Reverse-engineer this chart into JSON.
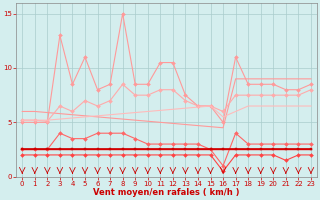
{
  "x": [
    0,
    1,
    2,
    3,
    4,
    5,
    6,
    7,
    8,
    9,
    10,
    11,
    12,
    13,
    14,
    15,
    16,
    17,
    18,
    19,
    20,
    21,
    22,
    23
  ],
  "series": [
    {
      "name": "rafales_jagged",
      "y": [
        5.0,
        5.0,
        5.0,
        13.0,
        8.5,
        11.0,
        8.0,
        8.5,
        15.0,
        8.5,
        8.5,
        10.5,
        10.5,
        7.5,
        6.5,
        6.5,
        5.0,
        11.0,
        8.5,
        8.5,
        8.5,
        8.0,
        8.0,
        8.5
      ],
      "color": "#ff9999",
      "lw": 0.8,
      "marker": "D",
      "ms": 2.0,
      "zorder": 2
    },
    {
      "name": "rafales_trend_upper",
      "y": [
        6.0,
        6.0,
        5.9,
        5.8,
        5.7,
        5.6,
        5.5,
        5.4,
        5.3,
        5.2,
        5.1,
        5.0,
        4.9,
        4.8,
        4.7,
        4.6,
        4.5,
        9.0,
        9.0,
        9.0,
        9.0,
        9.0,
        9.0,
        9.0
      ],
      "color": "#ff9999",
      "lw": 0.8,
      "marker": null,
      "ms": 0,
      "zorder": 2
    },
    {
      "name": "rafales_smooth",
      "y": [
        5.2,
        5.2,
        5.1,
        6.5,
        6.0,
        7.0,
        6.5,
        7.0,
        8.5,
        7.5,
        7.5,
        8.0,
        8.0,
        7.0,
        6.5,
        6.5,
        6.0,
        7.5,
        7.5,
        7.5,
        7.5,
        7.5,
        7.5,
        8.0
      ],
      "color": "#ffaaaa",
      "lw": 0.8,
      "marker": "D",
      "ms": 2.0,
      "zorder": 2
    },
    {
      "name": "lower_band_upper",
      "y": [
        5.2,
        5.2,
        5.2,
        5.3,
        5.4,
        5.5,
        5.6,
        5.7,
        5.8,
        5.9,
        6.0,
        6.1,
        6.2,
        6.3,
        6.4,
        6.5,
        5.5,
        6.0,
        6.5,
        6.5,
        6.5,
        6.5,
        6.5,
        6.5
      ],
      "color": "#ffbbbb",
      "lw": 0.8,
      "marker": null,
      "ms": 0,
      "zorder": 2
    },
    {
      "name": "vent_jagged",
      "y": [
        2.5,
        2.5,
        2.5,
        4.0,
        3.5,
        3.5,
        4.0,
        4.0,
        4.0,
        3.5,
        3.0,
        3.0,
        3.0,
        3.0,
        3.0,
        2.5,
        1.0,
        4.0,
        3.0,
        3.0,
        3.0,
        3.0,
        3.0,
        3.0
      ],
      "color": "#ff6666",
      "lw": 0.8,
      "marker": "D",
      "ms": 2.0,
      "zorder": 3
    },
    {
      "name": "vent_moyen",
      "y": [
        2.5,
        2.5,
        2.5,
        2.5,
        2.5,
        2.5,
        2.5,
        2.5,
        2.5,
        2.5,
        2.5,
        2.5,
        2.5,
        2.5,
        2.5,
        2.5,
        2.5,
        2.5,
        2.5,
        2.5,
        2.5,
        2.5,
        2.5,
        2.5
      ],
      "color": "#cc0000",
      "lw": 1.2,
      "marker": "s",
      "ms": 2.0,
      "zorder": 4
    },
    {
      "name": "vent_min",
      "y": [
        2.0,
        2.0,
        2.0,
        2.0,
        2.0,
        2.0,
        2.0,
        2.0,
        2.0,
        2.0,
        2.0,
        2.0,
        2.0,
        2.0,
        2.0,
        2.0,
        0.5,
        2.0,
        2.0,
        2.0,
        2.0,
        1.5,
        2.0,
        2.0
      ],
      "color": "#ff4444",
      "lw": 0.8,
      "marker": "D",
      "ms": 2.0,
      "zorder": 3
    },
    {
      "name": "vent_trend",
      "y": [
        2.5,
        2.5,
        2.5,
        2.5,
        2.5,
        2.5,
        2.5,
        2.5,
        2.5,
        2.5,
        2.5,
        2.5,
        2.5,
        2.5,
        2.5,
        2.5,
        2.5,
        2.5,
        2.5,
        2.5,
        2.5,
        2.5,
        2.5,
        2.5
      ],
      "color": "#ff0000",
      "lw": 1.0,
      "marker": null,
      "ms": 0,
      "zorder": 3
    }
  ],
  "xlabel": "Vent moyen/en rafales ( km/h )",
  "ylim": [
    0,
    16
  ],
  "xlim": [
    -0.5,
    23.5
  ],
  "yticks": [
    0,
    5,
    10,
    15
  ],
  "xticks": [
    0,
    1,
    2,
    3,
    4,
    5,
    6,
    7,
    8,
    9,
    10,
    11,
    12,
    13,
    14,
    15,
    16,
    17,
    18,
    19,
    20,
    21,
    22,
    23
  ],
  "bg_color": "#d4eeee",
  "grid_color": "#aacccc",
  "xlabel_color": "#cc0000",
  "tick_color": "#cc0000",
  "arrow_color": "#cc0000"
}
